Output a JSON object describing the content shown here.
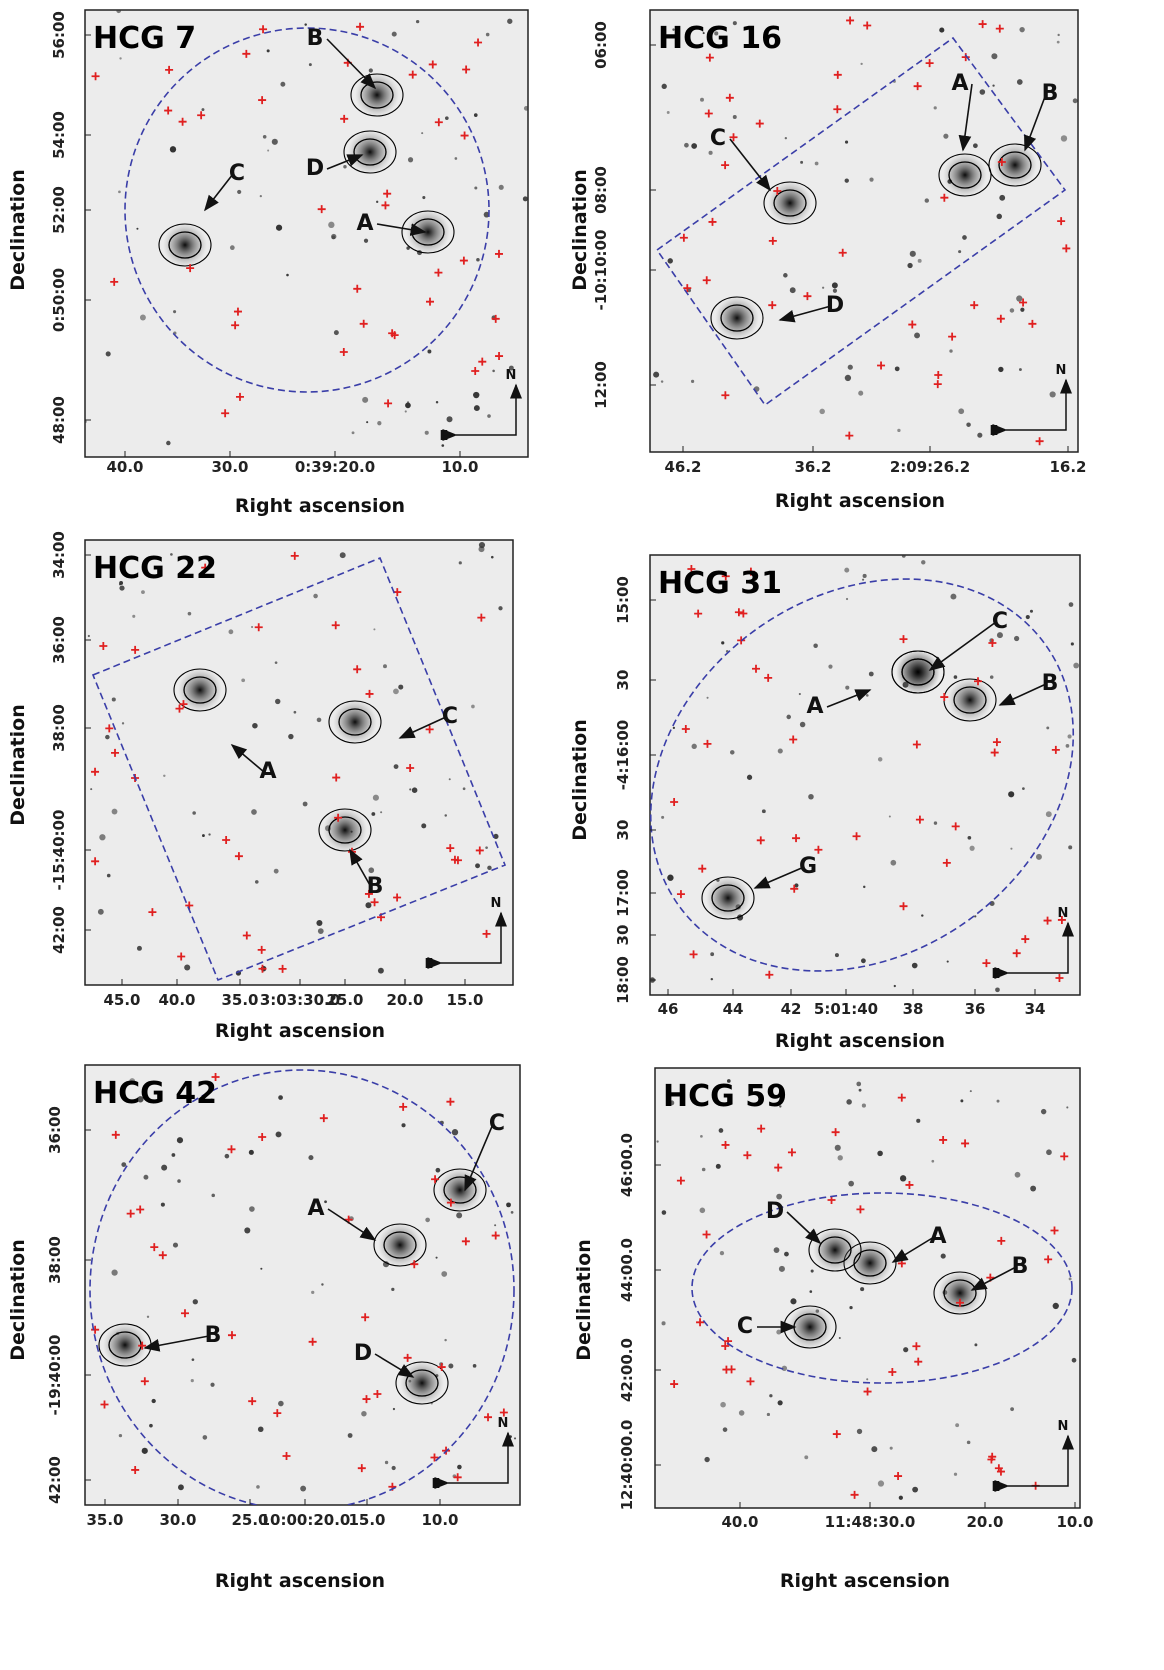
{
  "panels": [
    {
      "title": "HCG 7",
      "x_label": "Right ascension",
      "y_label": "Declination",
      "x_ticks": [
        "40.0",
        "30.0",
        "0:39:20.0",
        "10.0"
      ],
      "y_ticks": [
        "56:00",
        "54:00",
        "52:00",
        "0:50:00",
        "48:00"
      ],
      "galaxies": [
        "A",
        "B",
        "C",
        "D"
      ],
      "compass": {
        "north": "N",
        "east": "E"
      }
    },
    {
      "title": "HCG 16",
      "x_label": "Right ascension",
      "y_label": "Declination",
      "x_ticks": [
        "46.2",
        "36.2",
        "2:09:26.2",
        "16.2"
      ],
      "y_ticks": [
        "06:00",
        "08:00",
        "-10:10:00",
        "12:00"
      ],
      "galaxies": [
        "A",
        "B",
        "C",
        "D"
      ],
      "compass": {
        "north": "N",
        "east": "E"
      }
    },
    {
      "title": "HCG 22",
      "x_label": "Right ascension",
      "y_label": "Declination",
      "x_ticks": [
        "45.0",
        "40.0",
        "35.0",
        "3:03:30.0",
        "25.0",
        "20.0",
        "15.0"
      ],
      "y_ticks": [
        "34:00",
        "36:00",
        "38:00",
        "-15:40:00",
        "42:00"
      ],
      "galaxies": [
        "A",
        "B",
        "C"
      ],
      "compass": {
        "north": "N",
        "east": "E"
      }
    },
    {
      "title": "HCG 31",
      "x_label": "Right ascension",
      "y_label": "Declination",
      "x_ticks": [
        "46",
        "44",
        "42",
        "5:01:40",
        "38",
        "36",
        "34"
      ],
      "y_ticks": [
        "15:00",
        "30",
        "-4:16:00",
        "30",
        "17:00",
        "30",
        "18:00"
      ],
      "galaxies": [
        "A",
        "B",
        "C",
        "G"
      ],
      "compass": {
        "north": "N",
        "east": "E"
      }
    },
    {
      "title": "HCG 42",
      "x_label": "Right ascension",
      "y_label": "Declination",
      "x_ticks": [
        "35.0",
        "30.0",
        "25.0",
        "10:00:20.0",
        "15.0",
        "10.0"
      ],
      "y_ticks": [
        "36:00",
        "38:00",
        "-19:40:00",
        "42:00"
      ],
      "galaxies": [
        "A",
        "B",
        "C",
        "D"
      ],
      "compass": {
        "north": "N",
        "east": "E"
      }
    },
    {
      "title": "HCG 59",
      "x_label": "Right ascension",
      "y_label": "Declination",
      "x_ticks": [
        "40.0",
        "11:48:30.0",
        "20.0",
        "10.0"
      ],
      "y_ticks": [
        "46:00.0",
        "44:00.0",
        "42:00.0",
        "12:40:00.0"
      ],
      "galaxies": [
        "A",
        "B",
        "C",
        "D"
      ],
      "compass": {
        "north": "N",
        "east": "E"
      }
    }
  ]
}
